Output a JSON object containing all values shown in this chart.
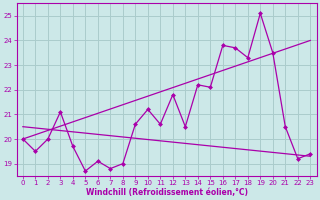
{
  "bg_color": "#cce8e8",
  "grid_color": "#aacccc",
  "line_color": "#aa00aa",
  "xlabel": "Windchill (Refroidissement éolien,°C)",
  "xlabel_color": "#aa00aa",
  "tick_color": "#aa00aa",
  "spine_color": "#aa00aa",
  "xlim": [
    -0.5,
    23.5
  ],
  "ylim": [
    18.5,
    25.5
  ],
  "yticks": [
    19,
    20,
    21,
    22,
    23,
    24,
    25
  ],
  "xticks": [
    0,
    1,
    2,
    3,
    4,
    5,
    6,
    7,
    8,
    9,
    10,
    11,
    12,
    13,
    14,
    15,
    16,
    17,
    18,
    19,
    20,
    21,
    22,
    23
  ],
  "line1_x": [
    0,
    1,
    2,
    3,
    4,
    5,
    6,
    7,
    8,
    9,
    10,
    11,
    12,
    13,
    14,
    15,
    16,
    17,
    18,
    19,
    20,
    21,
    22,
    23
  ],
  "line1_y": [
    20.0,
    19.5,
    20.0,
    21.1,
    19.7,
    18.7,
    19.1,
    18.8,
    19.0,
    20.6,
    21.2,
    20.6,
    21.8,
    20.5,
    22.2,
    22.1,
    23.8,
    23.7,
    23.3,
    25.1,
    23.5,
    20.5,
    19.2,
    19.4
  ],
  "trend1_x": [
    0,
    23
  ],
  "trend1_y": [
    20.0,
    24.0
  ],
  "trend2_x": [
    0,
    23
  ],
  "trend2_y": [
    20.5,
    19.3
  ]
}
